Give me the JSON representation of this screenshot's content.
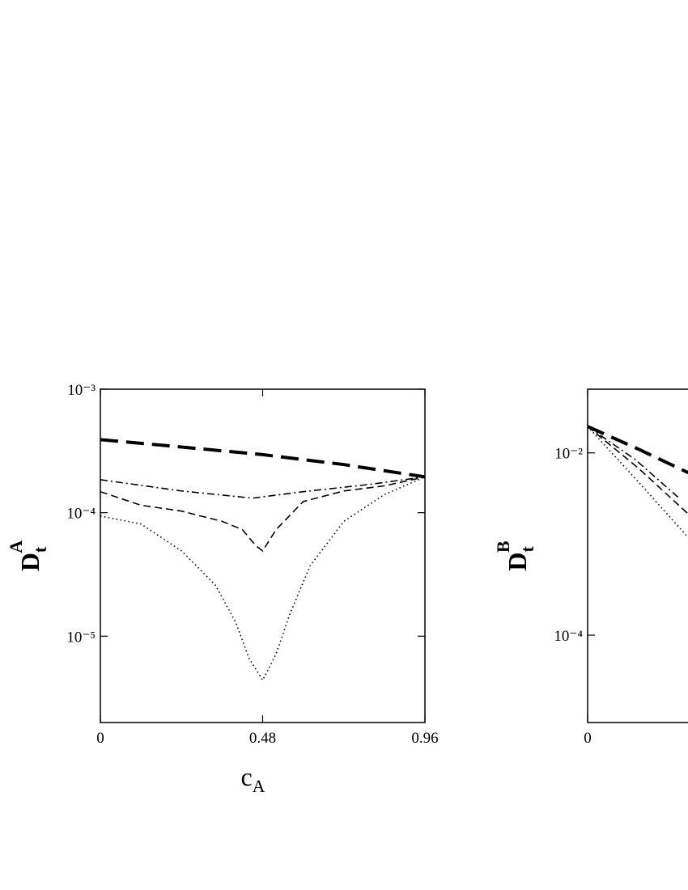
{
  "chart_data": [
    {
      "type": "line",
      "log_y": true,
      "x_label": {
        "base": "c",
        "sub": "A"
      },
      "y_label": {
        "base": "D",
        "sub": "t",
        "sup": "A"
      },
      "xlim": [
        0,
        0.96
      ],
      "xticks": [
        0,
        0.48,
        0.96
      ],
      "ylim": [
        2e-06,
        0.001
      ],
      "yticks": [
        {
          "value": 0.001,
          "label": "10⁻³"
        },
        {
          "value": 0.0001,
          "label": "10⁻⁴"
        },
        {
          "value": 1e-05,
          "label": "10⁻⁵"
        }
      ],
      "series": [
        {
          "color": "#000000",
          "dash": "long-dash",
          "weight": "thick",
          "x": [
            0,
            0.24,
            0.48,
            0.72,
            0.96
          ],
          "values": [
            0.00039,
            0.00034,
            0.000295,
            0.000245,
            0.000195
          ]
        },
        {
          "color": "#000000",
          "dash": "dash-dot",
          "weight": "thin",
          "x": [
            0,
            0.24,
            0.45,
            0.6,
            0.8,
            0.96
          ],
          "values": [
            0.000185,
            0.00015,
            0.000131,
            0.000148,
            0.00017,
            0.000195
          ]
        },
        {
          "color": "#000000",
          "dash": "dash",
          "weight": "thin",
          "x": [
            0,
            0.12,
            0.24,
            0.36,
            0.42,
            0.46,
            0.48,
            0.52,
            0.6,
            0.72,
            0.84,
            0.96
          ],
          "values": [
            0.000148,
            0.000115,
            0.000103,
            8.5e-05,
            7.3e-05,
            5.4e-05,
            4.9e-05,
            7.3e-05,
            0.000123,
            0.00015,
            0.000165,
            0.000195
          ]
        },
        {
          "color": "#000000",
          "dash": "dot",
          "weight": "thin",
          "x": [
            0,
            0.12,
            0.24,
            0.34,
            0.4,
            0.44,
            0.48,
            0.52,
            0.56,
            0.62,
            0.72,
            0.84,
            0.96
          ],
          "values": [
            9.4e-05,
            8.1e-05,
            4.9e-05,
            2.6e-05,
            1.3e-05,
            6.6e-06,
            4.4e-06,
            7.2e-06,
            1.5e-05,
            3.7e-05,
            8.5e-05,
            0.00014,
            0.000195
          ]
        }
      ]
    },
    {
      "type": "line",
      "log_y": true,
      "y_label": {
        "base": "D",
        "sub": "t",
        "sup": "B"
      },
      "xlim": [
        0,
        0.96
      ],
      "xticks": [
        0
      ],
      "ylim": [
        1.1e-05,
        0.05
      ],
      "yticks": [
        {
          "value": 0.01,
          "label": "10⁻²"
        },
        {
          "value": 0.0001,
          "label": "10⁻⁴"
        }
      ],
      "series": [
        {
          "color": "#000000",
          "dash": "long-dash",
          "weight": "thick",
          "x": [
            0,
            0.15,
            0.3
          ],
          "values": [
            0.0195,
            0.011,
            0.006
          ]
        },
        {
          "color": "#000000",
          "dash": "dash-dot",
          "weight": "thin",
          "x": [
            0,
            0.14,
            0.27
          ],
          "values": [
            0.0195,
            0.0085,
            0.0032
          ]
        },
        {
          "color": "#000000",
          "dash": "dash",
          "weight": "thin",
          "x": [
            0,
            0.15,
            0.3
          ],
          "values": [
            0.0195,
            0.0068,
            0.0021
          ]
        },
        {
          "color": "#000000",
          "dash": "dot",
          "weight": "thin",
          "x": [
            0,
            0.15,
            0.3
          ],
          "values": [
            0.0195,
            0.0048,
            0.00115
          ]
        }
      ]
    }
  ]
}
